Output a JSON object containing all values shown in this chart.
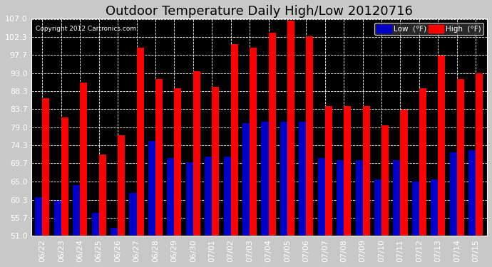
{
  "title": "Outdoor Temperature Daily High/Low 20120716",
  "copyright": "Copyright 2012 Cartronics.com",
  "legend_low": "Low  (°F)",
  "legend_high": "High  (°F)",
  "dates": [
    "06/22",
    "06/23",
    "06/24",
    "06/25",
    "06/26",
    "06/27",
    "06/28",
    "06/29",
    "06/30",
    "07/01",
    "07/02",
    "07/03",
    "07/04",
    "07/05",
    "07/06",
    "07/07",
    "07/08",
    "07/09",
    "07/10",
    "07/11",
    "07/12",
    "07/13",
    "07/14",
    "07/15"
  ],
  "high": [
    86.5,
    81.5,
    90.5,
    72.0,
    77.0,
    99.5,
    91.5,
    89.0,
    93.5,
    89.5,
    100.5,
    99.5,
    103.5,
    106.5,
    102.5,
    84.5,
    84.5,
    84.5,
    79.5,
    83.5,
    89.0,
    97.5,
    91.5,
    93.0
  ],
  "low": [
    61.0,
    60.0,
    64.0,
    57.0,
    53.0,
    62.0,
    75.5,
    71.0,
    70.0,
    71.5,
    71.5,
    80.0,
    80.5,
    80.5,
    80.5,
    71.0,
    70.5,
    70.5,
    65.5,
    70.5,
    65.0,
    65.5,
    72.5,
    73.0
  ],
  "bar_color_high": "#ff0000",
  "bar_color_low": "#0000cc",
  "background_color": "#000000",
  "plot_background": "#000000",
  "grid_color": "#555555",
  "text_color": "#ffffff",
  "title_color": "#000000",
  "outer_bg": "#c8c8c8",
  "ylim": [
    51.0,
    107.0
  ],
  "yticks": [
    51.0,
    55.7,
    60.3,
    65.0,
    69.7,
    74.3,
    79.0,
    83.7,
    88.3,
    93.0,
    97.7,
    102.3,
    107.0
  ],
  "title_fontsize": 13,
  "tick_fontsize": 8,
  "bar_width": 0.38
}
